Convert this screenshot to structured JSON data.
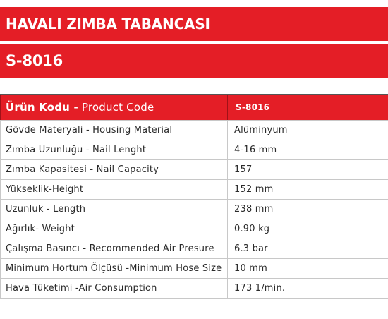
{
  "header": {
    "title": "HAVALI ZIMBA TABANCASI",
    "model": "S-8016"
  },
  "table": {
    "head_label_tr": "Ürün Kodu -",
    "head_label_en": " Product Code",
    "head_value": "S-8016",
    "rows": [
      {
        "label": "Gövde Materyali  - Housing Material",
        "value": "Alüminyum"
      },
      {
        "label": "Zımba Uzunluğu - Nail Lenght",
        "value": "4-16 mm"
      },
      {
        "label": "Zımba Kapasitesi - Nail Capacity",
        "value": "157"
      },
      {
        "label": "Yükseklik-Height",
        "value": "152 mm"
      },
      {
        "label": "Uzunluk - Length",
        "value": "238 mm"
      },
      {
        "label": "Ağırlık- Weight",
        "value": "0.90 kg"
      },
      {
        "label": "Çalışma Basıncı - Recommended Air Presure",
        "value": "6.3 bar"
      },
      {
        "label": "Minimum Hortum Ölçüsü -Minimum Hose Size",
        "value": "10 mm"
      },
      {
        "label": "Hava Tüketimi -Air Consumption",
        "value": "173 1/min."
      }
    ]
  },
  "colors": {
    "accent": "#e41e26",
    "border": "#c8c8c8"
  }
}
